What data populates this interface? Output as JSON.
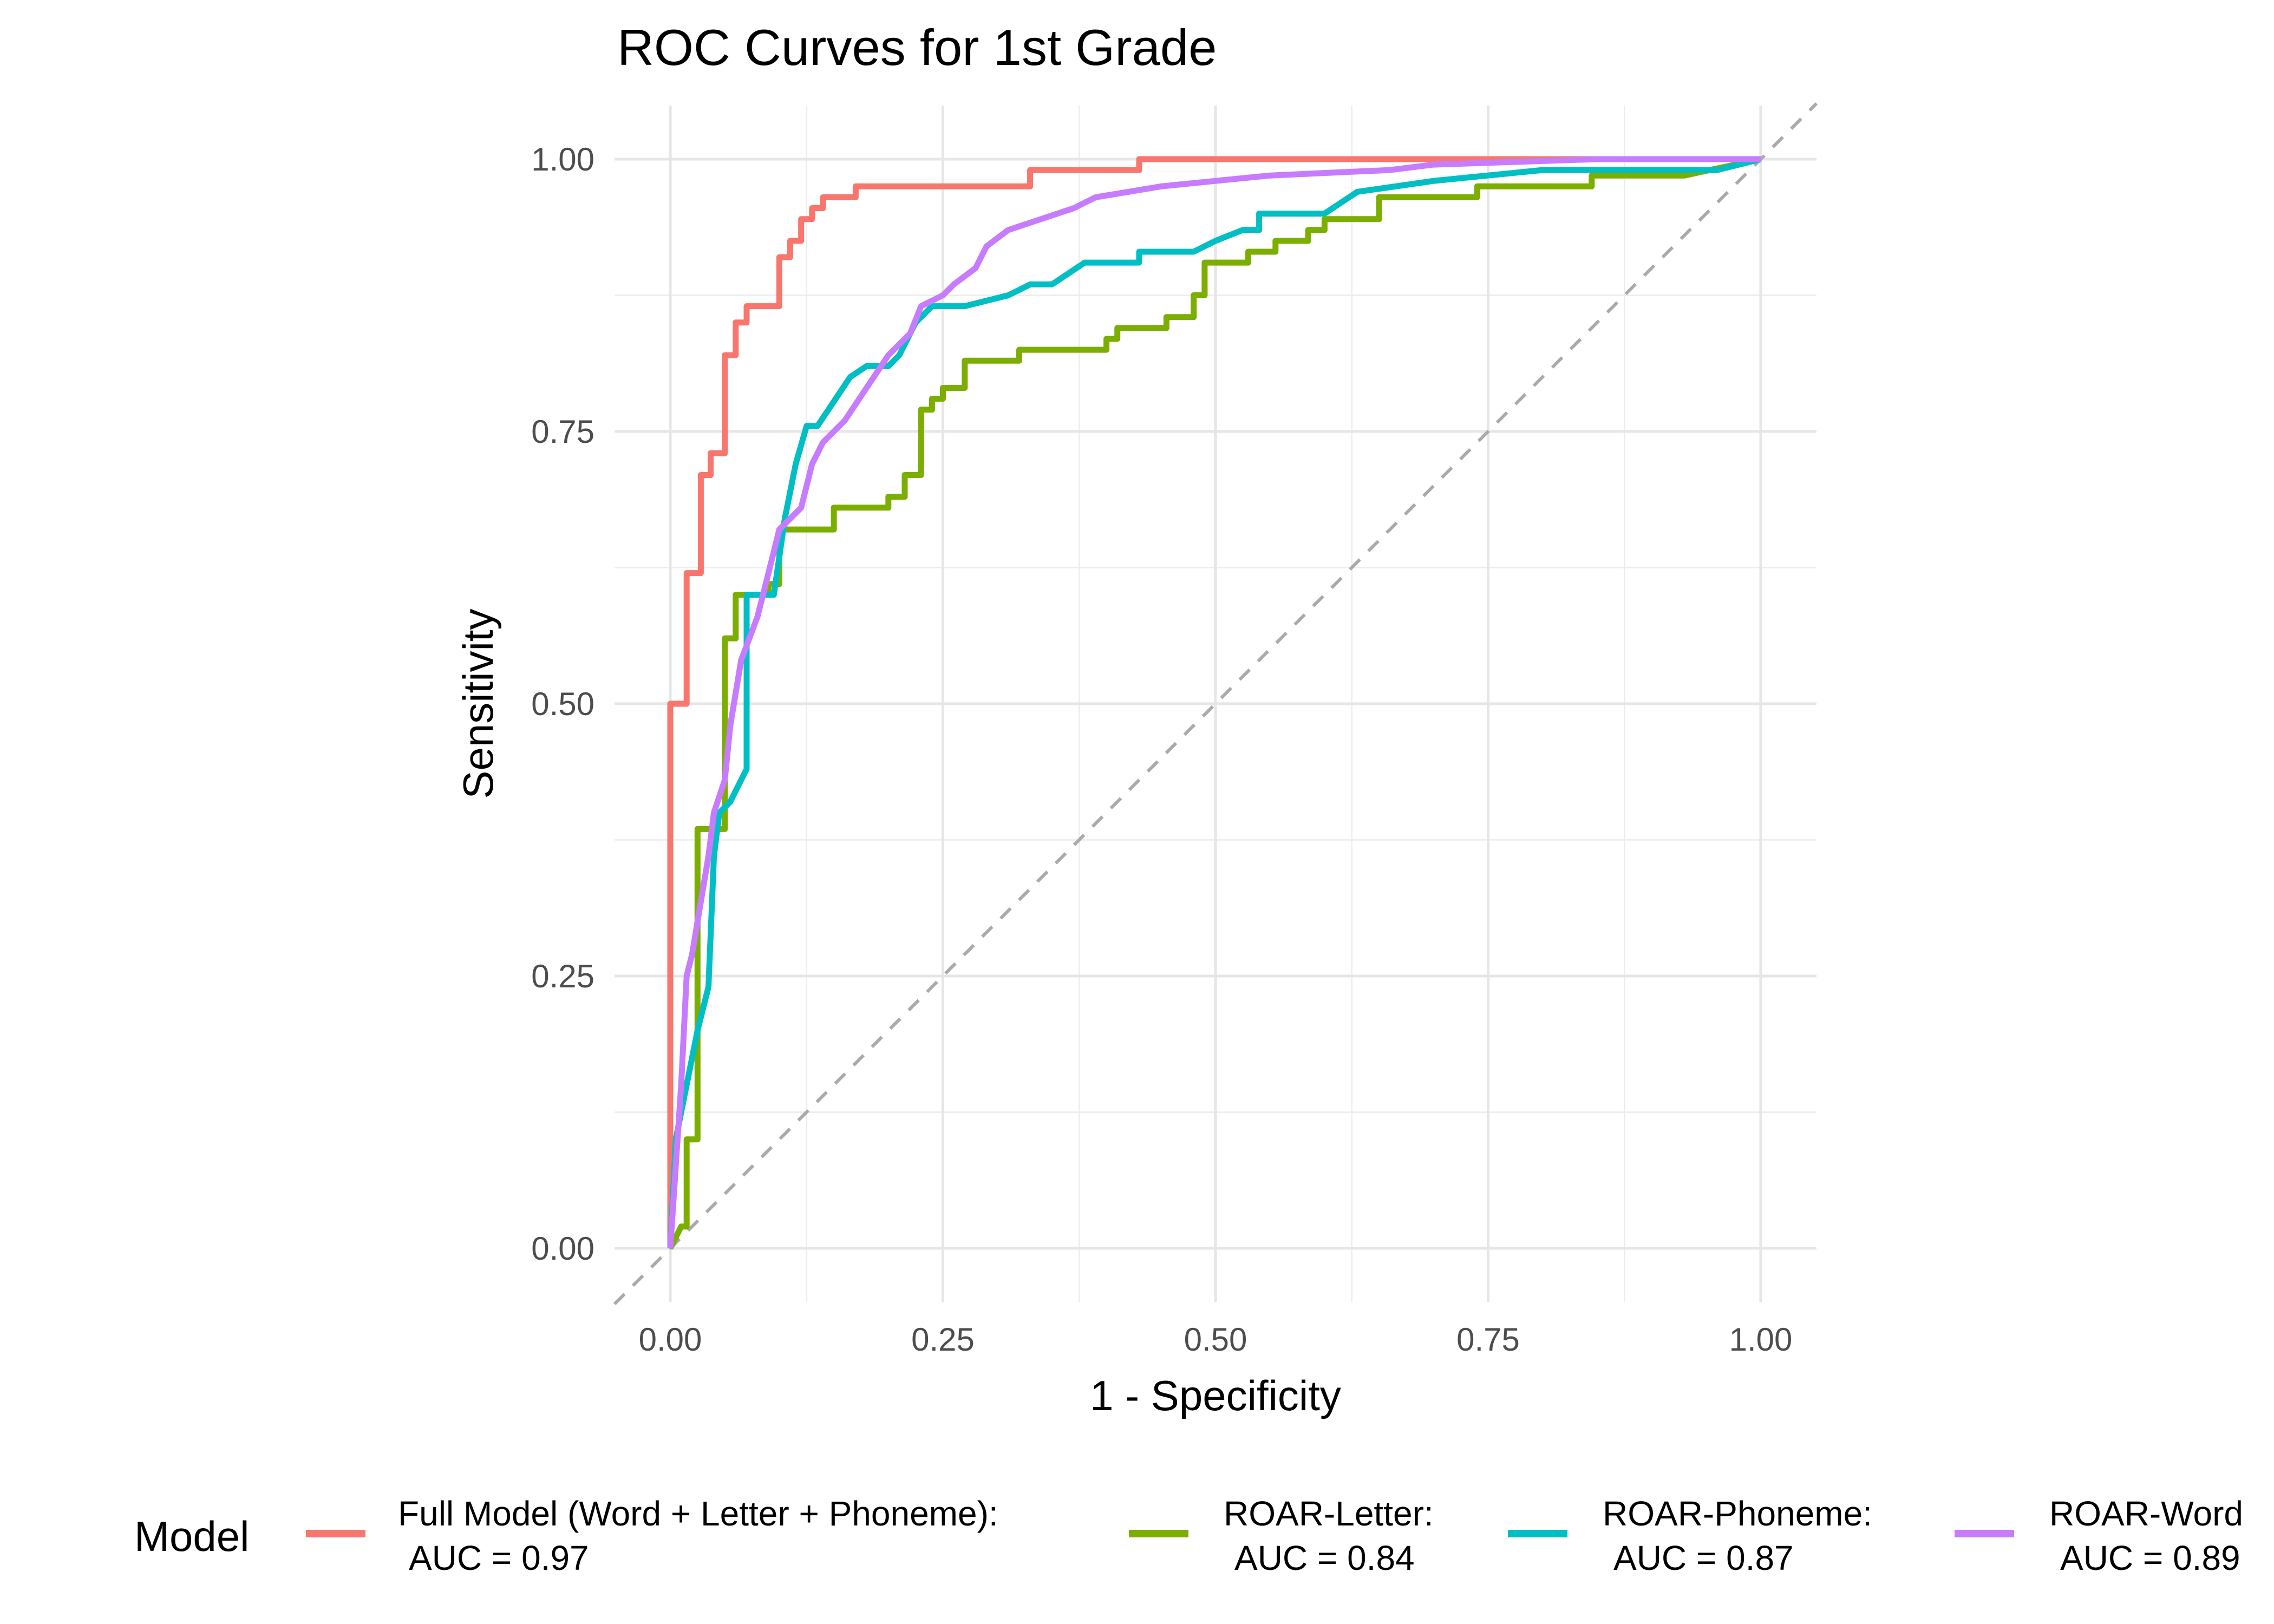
{
  "chart_data": {
    "type": "line",
    "title": "ROC Curves for 1st Grade",
    "xlabel": "1 - Specificity",
    "ylabel": "Sensitivity",
    "xlim": [
      0,
      1
    ],
    "ylim": [
      0,
      1
    ],
    "x_ticks": [
      "0.00",
      "0.25",
      "0.50",
      "0.75",
      "1.00"
    ],
    "y_ticks": [
      "0.00",
      "0.25",
      "0.50",
      "0.75",
      "1.00"
    ],
    "grid": true,
    "reference_line": "diagonal dashed grey",
    "legend": {
      "title": "Model",
      "position": "bottom"
    },
    "series": [
      {
        "name": "Full Model (Word + Letter + Phoneme):",
        "name_line2": "AUC = 0.97",
        "color": "#F8766D",
        "points": [
          [
            0,
            0
          ],
          [
            0,
            0.5
          ],
          [
            0.015,
            0.5
          ],
          [
            0.015,
            0.62
          ],
          [
            0.028,
            0.62
          ],
          [
            0.028,
            0.71
          ],
          [
            0.037,
            0.71
          ],
          [
            0.037,
            0.73
          ],
          [
            0.05,
            0.73
          ],
          [
            0.05,
            0.82
          ],
          [
            0.06,
            0.82
          ],
          [
            0.06,
            0.85
          ],
          [
            0.07,
            0.85
          ],
          [
            0.07,
            0.865
          ],
          [
            0.085,
            0.865
          ],
          [
            0.1,
            0.865
          ],
          [
            0.1,
            0.91
          ],
          [
            0.11,
            0.91
          ],
          [
            0.11,
            0.925
          ],
          [
            0.12,
            0.925
          ],
          [
            0.12,
            0.945
          ],
          [
            0.13,
            0.945
          ],
          [
            0.13,
            0.955
          ],
          [
            0.14,
            0.955
          ],
          [
            0.14,
            0.965
          ],
          [
            0.17,
            0.965
          ],
          [
            0.17,
            0.975
          ],
          [
            0.33,
            0.975
          ],
          [
            0.33,
            0.99
          ],
          [
            0.43,
            0.99
          ],
          [
            0.43,
            1
          ],
          [
            1,
            1
          ]
        ]
      },
      {
        "name": "ROAR-Letter:",
        "name_line2": "AUC = 0.84",
        "color": "#7CAE00",
        "points": [
          [
            0,
            0
          ],
          [
            0.01,
            0.02
          ],
          [
            0.015,
            0.02
          ],
          [
            0.015,
            0.1
          ],
          [
            0.025,
            0.1
          ],
          [
            0.025,
            0.385
          ],
          [
            0.05,
            0.385
          ],
          [
            0.05,
            0.56
          ],
          [
            0.06,
            0.56
          ],
          [
            0.06,
            0.6
          ],
          [
            0.09,
            0.6
          ],
          [
            0.09,
            0.61
          ],
          [
            0.1,
            0.61
          ],
          [
            0.1,
            0.66
          ],
          [
            0.15,
            0.66
          ],
          [
            0.15,
            0.68
          ],
          [
            0.2,
            0.68
          ],
          [
            0.2,
            0.69
          ],
          [
            0.215,
            0.69
          ],
          [
            0.215,
            0.71
          ],
          [
            0.23,
            0.71
          ],
          [
            0.23,
            0.77
          ],
          [
            0.24,
            0.77
          ],
          [
            0.24,
            0.78
          ],
          [
            0.25,
            0.78
          ],
          [
            0.25,
            0.79
          ],
          [
            0.27,
            0.79
          ],
          [
            0.27,
            0.815
          ],
          [
            0.32,
            0.815
          ],
          [
            0.32,
            0.825
          ],
          [
            0.4,
            0.825
          ],
          [
            0.4,
            0.835
          ],
          [
            0.41,
            0.835
          ],
          [
            0.41,
            0.845
          ],
          [
            0.455,
            0.845
          ],
          [
            0.455,
            0.855
          ],
          [
            0.48,
            0.855
          ],
          [
            0.48,
            0.875
          ],
          [
            0.49,
            0.875
          ],
          [
            0.49,
            0.905
          ],
          [
            0.53,
            0.905
          ],
          [
            0.53,
            0.915
          ],
          [
            0.555,
            0.915
          ],
          [
            0.555,
            0.925
          ],
          [
            0.585,
            0.925
          ],
          [
            0.585,
            0.935
          ],
          [
            0.6,
            0.935
          ],
          [
            0.6,
            0.945
          ],
          [
            0.65,
            0.945
          ],
          [
            0.65,
            0.965
          ],
          [
            0.74,
            0.965
          ],
          [
            0.74,
            0.975
          ],
          [
            0.845,
            0.975
          ],
          [
            0.845,
            0.985
          ],
          [
            0.93,
            0.985
          ],
          [
            1,
            1
          ]
        ]
      },
      {
        "name": "ROAR-Phoneme:",
        "name_line2": "AUC = 0.87",
        "color": "#00BFC4",
        "points": [
          [
            0,
            0
          ],
          [
            0.005,
            0.1
          ],
          [
            0.015,
            0.15
          ],
          [
            0.025,
            0.2
          ],
          [
            0.035,
            0.24
          ],
          [
            0.04,
            0.36
          ],
          [
            0.045,
            0.4
          ],
          [
            0.055,
            0.41
          ],
          [
            0.06,
            0.42
          ],
          [
            0.07,
            0.44
          ],
          [
            0.07,
            0.6
          ],
          [
            0.095,
            0.6
          ],
          [
            0.105,
            0.67
          ],
          [
            0.115,
            0.72
          ],
          [
            0.125,
            0.755
          ],
          [
            0.135,
            0.755
          ],
          [
            0.145,
            0.77
          ],
          [
            0.165,
            0.8
          ],
          [
            0.18,
            0.81
          ],
          [
            0.2,
            0.81
          ],
          [
            0.21,
            0.82
          ],
          [
            0.225,
            0.85
          ],
          [
            0.24,
            0.865
          ],
          [
            0.27,
            0.865
          ],
          [
            0.31,
            0.875
          ],
          [
            0.33,
            0.885
          ],
          [
            0.35,
            0.885
          ],
          [
            0.38,
            0.905
          ],
          [
            0.43,
            0.905
          ],
          [
            0.43,
            0.915
          ],
          [
            0.48,
            0.915
          ],
          [
            0.5,
            0.925
          ],
          [
            0.525,
            0.935
          ],
          [
            0.54,
            0.935
          ],
          [
            0.54,
            0.95
          ],
          [
            0.6,
            0.95
          ],
          [
            0.63,
            0.97
          ],
          [
            0.7,
            0.98
          ],
          [
            0.8,
            0.99
          ],
          [
            0.96,
            0.99
          ],
          [
            1,
            1
          ]
        ]
      },
      {
        "name": "ROAR-Word",
        "name_line2": "AUC = 0.89",
        "color": "#C77CFF",
        "points": [
          [
            0,
            0
          ],
          [
            0.01,
            0.15
          ],
          [
            0.015,
            0.25
          ],
          [
            0.02,
            0.27
          ],
          [
            0.025,
            0.3
          ],
          [
            0.035,
            0.36
          ],
          [
            0.04,
            0.4
          ],
          [
            0.05,
            0.43
          ],
          [
            0.055,
            0.48
          ],
          [
            0.065,
            0.54
          ],
          [
            0.08,
            0.58
          ],
          [
            0.09,
            0.62
          ],
          [
            0.1,
            0.66
          ],
          [
            0.12,
            0.68
          ],
          [
            0.13,
            0.72
          ],
          [
            0.14,
            0.74
          ],
          [
            0.16,
            0.76
          ],
          [
            0.18,
            0.79
          ],
          [
            0.2,
            0.82
          ],
          [
            0.22,
            0.84
          ],
          [
            0.23,
            0.865
          ],
          [
            0.25,
            0.875
          ],
          [
            0.26,
            0.885
          ],
          [
            0.28,
            0.9
          ],
          [
            0.29,
            0.92
          ],
          [
            0.31,
            0.935
          ],
          [
            0.34,
            0.945
          ],
          [
            0.37,
            0.955
          ],
          [
            0.39,
            0.965
          ],
          [
            0.42,
            0.97
          ],
          [
            0.45,
            0.975
          ],
          [
            0.5,
            0.98
          ],
          [
            0.55,
            0.985
          ],
          [
            0.66,
            0.99
          ],
          [
            0.7,
            0.995
          ],
          [
            0.85,
            1
          ],
          [
            1,
            1
          ]
        ]
      }
    ]
  }
}
